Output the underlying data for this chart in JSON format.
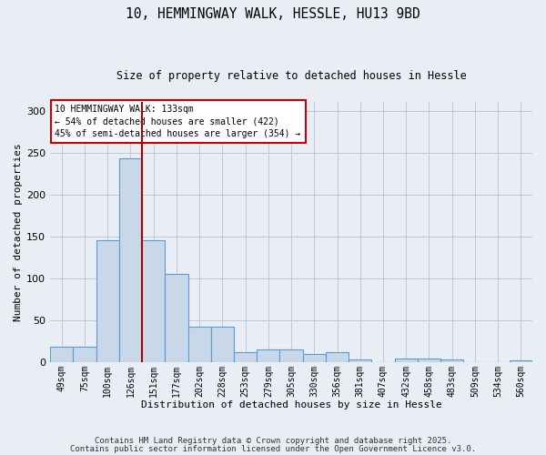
{
  "title_line1": "10, HEMMINGWAY WALK, HESSLE, HU13 9BD",
  "title_line2": "Size of property relative to detached houses in Hessle",
  "xlabel": "Distribution of detached houses by size in Hessle",
  "ylabel": "Number of detached properties",
  "categories": [
    "49sqm",
    "75sqm",
    "100sqm",
    "126sqm",
    "151sqm",
    "177sqm",
    "202sqm",
    "228sqm",
    "253sqm",
    "279sqm",
    "305sqm",
    "330sqm",
    "356sqm",
    "381sqm",
    "407sqm",
    "432sqm",
    "458sqm",
    "483sqm",
    "509sqm",
    "534sqm",
    "560sqm"
  ],
  "values": [
    18,
    18,
    145,
    243,
    145,
    105,
    42,
    42,
    12,
    15,
    15,
    10,
    12,
    3,
    0,
    4,
    4,
    3,
    0,
    0,
    2
  ],
  "bar_color": "#c8d8e8",
  "bar_edge_color": "#5b9bd5",
  "grid_color": "#c0c8d8",
  "background_color": "#e8eef4",
  "vline_x_index": 3.5,
  "vline_color": "#aa0000",
  "annotation_text": "10 HEMMINGWAY WALK: 133sqm\n← 54% of detached houses are smaller (422)\n45% of semi-detached houses are larger (354) →",
  "annotation_box_color": "#ffffff",
  "annotation_box_edge_color": "#cc0000",
  "ylim": [
    0,
    310
  ],
  "yticks": [
    0,
    50,
    100,
    150,
    200,
    250,
    300
  ],
  "footer_line1": "Contains HM Land Registry data © Crown copyright and database right 2025.",
  "footer_line2": "Contains public sector information licensed under the Open Government Licence v3.0."
}
